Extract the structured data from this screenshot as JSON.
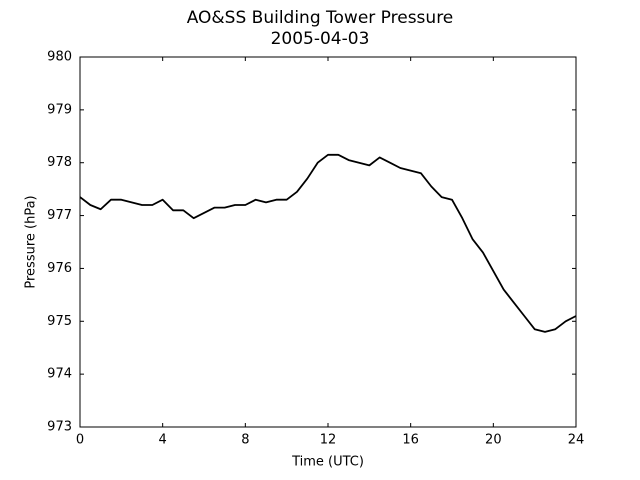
{
  "chart_data": {
    "type": "line",
    "title": "AO&SS Building Tower Pressure",
    "subtitle": "2005-04-03",
    "xlabel": "Time (UTC)",
    "ylabel": "Pressure (hPa)",
    "x": [
      0,
      0.5,
      1,
      1.5,
      2,
      2.5,
      3,
      3.5,
      4,
      4.5,
      5,
      5.5,
      6,
      6.5,
      7,
      7.5,
      8,
      8.5,
      9,
      9.5,
      10,
      10.5,
      11,
      11.5,
      12,
      12.5,
      13,
      13.5,
      14,
      14.5,
      15,
      15.5,
      16,
      16.5,
      17,
      17.5,
      18,
      18.5,
      19,
      19.5,
      20,
      20.5,
      21,
      21.5,
      22,
      22.5,
      23,
      23.5,
      24
    ],
    "values": [
      977.35,
      977.2,
      977.12,
      977.3,
      977.3,
      977.25,
      977.2,
      977.2,
      977.3,
      977.1,
      977.1,
      976.95,
      977.05,
      977.15,
      977.15,
      977.2,
      977.2,
      977.3,
      977.25,
      977.3,
      977.3,
      977.45,
      977.7,
      978.0,
      978.15,
      978.15,
      978.05,
      978.0,
      977.95,
      978.1,
      978.0,
      977.9,
      977.85,
      977.8,
      977.55,
      977.35,
      977.3,
      976.95,
      976.55,
      976.3,
      975.95,
      975.6,
      975.35,
      975.1,
      974.85,
      974.8,
      974.85,
      975.0,
      975.1
    ],
    "color": "#000000",
    "xlim": [
      0,
      24
    ],
    "xticks": [
      0,
      4,
      8,
      12,
      16,
      20,
      24
    ],
    "ylim": [
      973,
      980
    ],
    "yticks": [
      973,
      974,
      975,
      976,
      977,
      978,
      979,
      980
    ],
    "grid": false
  }
}
